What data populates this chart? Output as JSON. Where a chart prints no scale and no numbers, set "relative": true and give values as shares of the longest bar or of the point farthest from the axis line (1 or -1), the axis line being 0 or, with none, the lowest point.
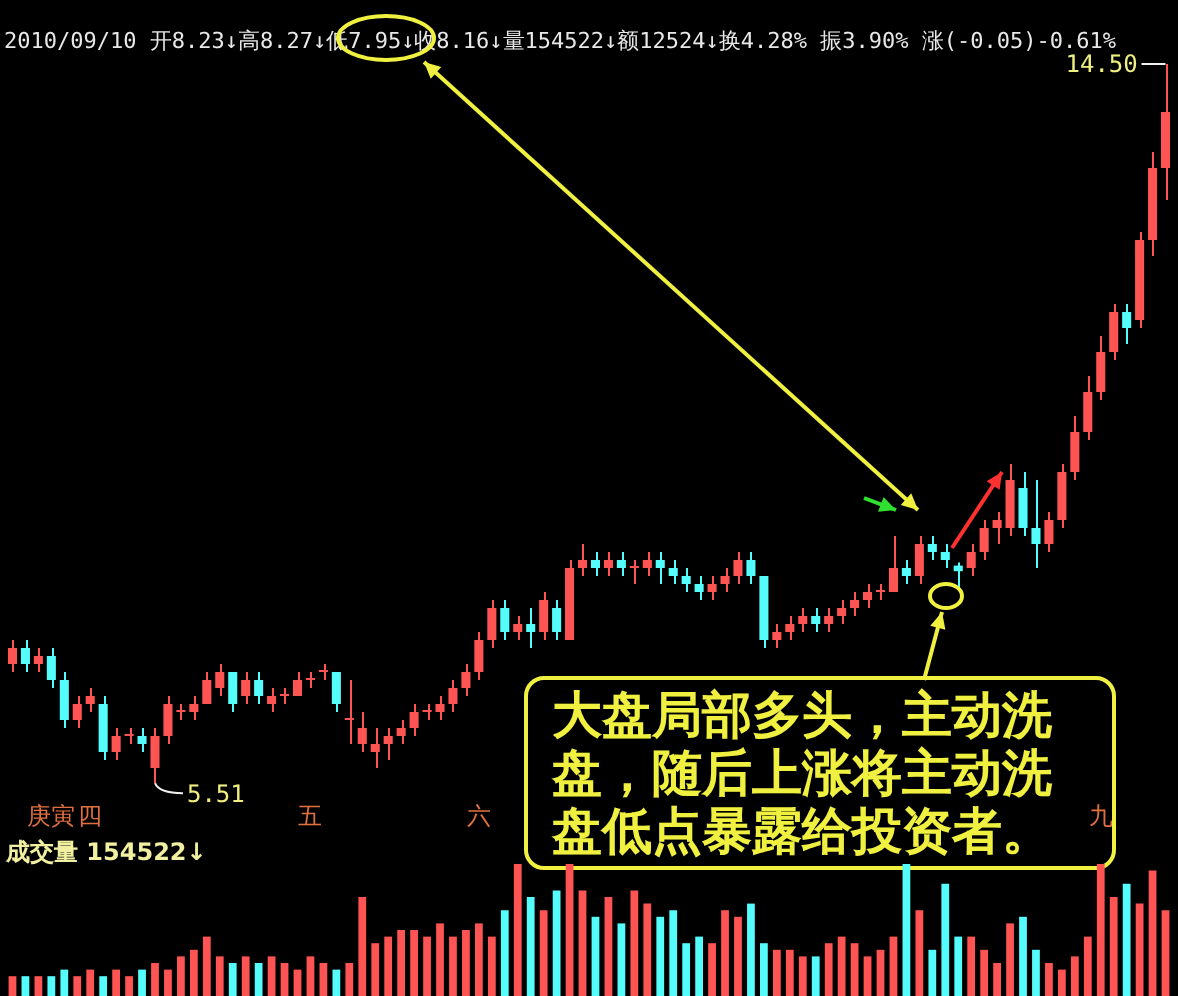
{
  "chart_data": [
    {
      "type": "candlestick",
      "title": "2010/09/10 开8.23↓高8.27↓低7.95↓收8.16↓量154522↓额12524↓换4.28% 振3.90% 涨(-0.05)-0.61%",
      "categories": [
        null,
        null,
        null,
        "庚寅",
        null,
        null,
        "四",
        null,
        null,
        null,
        null,
        null,
        null,
        null,
        null,
        null,
        null,
        null,
        null,
        null,
        null,
        null,
        null,
        "五",
        null,
        null,
        null,
        null,
        null,
        null,
        null,
        null,
        null,
        null,
        null,
        null,
        "六",
        null,
        null,
        null,
        null,
        null,
        null,
        null,
        null,
        null,
        null,
        null,
        null,
        null,
        null,
        null,
        null,
        null,
        null,
        null,
        null,
        null,
        null,
        null,
        null,
        null,
        null,
        null,
        null,
        null,
        null,
        null,
        null,
        null,
        null,
        null,
        null,
        null,
        null,
        null,
        null,
        null,
        null,
        null,
        null,
        null,
        null,
        null,
        "九",
        null,
        null,
        null,
        null,
        null
      ],
      "ohlc": [
        [
          7.0,
          7.3,
          6.9,
          7.2
        ],
        [
          7.2,
          7.3,
          6.9,
          7.0
        ],
        [
          7.0,
          7.2,
          6.9,
          7.1
        ],
        [
          7.1,
          7.2,
          6.7,
          6.8
        ],
        [
          6.8,
          6.9,
          6.2,
          6.3
        ],
        [
          6.3,
          6.6,
          6.2,
          6.5
        ],
        [
          6.5,
          6.7,
          6.4,
          6.6
        ],
        [
          6.5,
          6.6,
          5.8,
          5.9
        ],
        [
          5.9,
          6.2,
          5.8,
          6.1
        ],
        [
          6.1,
          6.2,
          6.0,
          6.1
        ],
        [
          6.1,
          6.2,
          5.9,
          6.0
        ],
        [
          5.7,
          6.2,
          5.51,
          6.1
        ],
        [
          6.1,
          6.6,
          6.0,
          6.5
        ],
        [
          6.4,
          6.5,
          6.3,
          6.4
        ],
        [
          6.4,
          6.6,
          6.3,
          6.5
        ],
        [
          6.5,
          6.9,
          6.5,
          6.8
        ],
        [
          6.7,
          7.0,
          6.6,
          6.9
        ],
        [
          6.9,
          6.9,
          6.4,
          6.5
        ],
        [
          6.6,
          6.9,
          6.5,
          6.8
        ],
        [
          6.8,
          6.9,
          6.5,
          6.6
        ],
        [
          6.5,
          6.7,
          6.4,
          6.6
        ],
        [
          6.6,
          6.7,
          6.5,
          6.6
        ],
        [
          6.6,
          6.9,
          6.6,
          6.8
        ],
        [
          6.8,
          6.9,
          6.7,
          6.8
        ],
        [
          6.9,
          7.0,
          6.8,
          6.9
        ],
        [
          6.9,
          6.9,
          6.4,
          6.5
        ],
        [
          6.3,
          6.8,
          6.0,
          6.3
        ],
        [
          6.0,
          6.4,
          5.9,
          6.2
        ],
        [
          5.9,
          6.2,
          5.7,
          6.0
        ],
        [
          6.0,
          6.2,
          5.8,
          6.1
        ],
        [
          6.1,
          6.3,
          6.0,
          6.2
        ],
        [
          6.2,
          6.5,
          6.1,
          6.4
        ],
        [
          6.4,
          6.5,
          6.3,
          6.4
        ],
        [
          6.4,
          6.6,
          6.3,
          6.5
        ],
        [
          6.5,
          6.8,
          6.4,
          6.7
        ],
        [
          6.7,
          7.0,
          6.6,
          6.9
        ],
        [
          6.9,
          7.4,
          6.8,
          7.3
        ],
        [
          7.3,
          7.8,
          7.2,
          7.7
        ],
        [
          7.7,
          7.8,
          7.3,
          7.4
        ],
        [
          7.4,
          7.6,
          7.3,
          7.5
        ],
        [
          7.5,
          7.7,
          7.2,
          7.4
        ],
        [
          7.4,
          7.9,
          7.3,
          7.8
        ],
        [
          7.7,
          7.8,
          7.3,
          7.4
        ],
        [
          7.3,
          8.3,
          7.3,
          8.2
        ],
        [
          8.2,
          8.5,
          8.1,
          8.3
        ],
        [
          8.3,
          8.4,
          8.1,
          8.2
        ],
        [
          8.2,
          8.4,
          8.1,
          8.3
        ],
        [
          8.3,
          8.4,
          8.1,
          8.2
        ],
        [
          8.2,
          8.3,
          8.0,
          8.2
        ],
        [
          8.2,
          8.4,
          8.1,
          8.3
        ],
        [
          8.3,
          8.4,
          8.0,
          8.2
        ],
        [
          8.2,
          8.3,
          8.0,
          8.1
        ],
        [
          8.1,
          8.2,
          7.9,
          8.0
        ],
        [
          8.0,
          8.1,
          7.8,
          7.9
        ],
        [
          7.9,
          8.1,
          7.8,
          8.0
        ],
        [
          8.0,
          8.2,
          7.9,
          8.1
        ],
        [
          8.1,
          8.4,
          8.0,
          8.3
        ],
        [
          8.3,
          8.4,
          8.0,
          8.1
        ],
        [
          8.1,
          8.1,
          7.2,
          7.3
        ],
        [
          7.3,
          7.5,
          7.2,
          7.4
        ],
        [
          7.4,
          7.6,
          7.3,
          7.5
        ],
        [
          7.5,
          7.7,
          7.4,
          7.6
        ],
        [
          7.6,
          7.7,
          7.4,
          7.5
        ],
        [
          7.5,
          7.7,
          7.4,
          7.6
        ],
        [
          7.6,
          7.8,
          7.5,
          7.7
        ],
        [
          7.7,
          7.9,
          7.6,
          7.8
        ],
        [
          7.8,
          8.0,
          7.7,
          7.9
        ],
        [
          7.9,
          8.0,
          7.8,
          7.9
        ],
        [
          7.9,
          8.6,
          7.9,
          8.2
        ],
        [
          8.2,
          8.3,
          8.0,
          8.1
        ],
        [
          8.1,
          8.6,
          8.0,
          8.5
        ],
        [
          8.5,
          8.6,
          8.3,
          8.4
        ],
        [
          8.4,
          8.5,
          8.2,
          8.3
        ],
        [
          8.23,
          8.27,
          7.95,
          8.16
        ],
        [
          8.2,
          8.5,
          8.1,
          8.4
        ],
        [
          8.4,
          8.8,
          8.3,
          8.7
        ],
        [
          8.7,
          8.9,
          8.5,
          8.8
        ],
        [
          8.7,
          9.5,
          8.6,
          9.3
        ],
        [
          9.2,
          9.4,
          8.6,
          8.7
        ],
        [
          8.7,
          9.3,
          8.2,
          8.5
        ],
        [
          8.5,
          8.9,
          8.4,
          8.8
        ],
        [
          8.8,
          9.5,
          8.7,
          9.4
        ],
        [
          9.4,
          10.1,
          9.3,
          9.9
        ],
        [
          9.9,
          10.6,
          9.8,
          10.4
        ],
        [
          10.4,
          11.1,
          10.3,
          10.9
        ],
        [
          10.9,
          11.5,
          10.8,
          11.4
        ],
        [
          11.4,
          11.5,
          11.0,
          11.2
        ],
        [
          11.3,
          12.4,
          11.2,
          12.3
        ],
        [
          12.3,
          13.4,
          12.1,
          13.2
        ],
        [
          13.2,
          14.5,
          12.8,
          13.9
        ]
      ],
      "colors": [
        "#ff5454",
        "#54fcfc",
        "#ff5454",
        "#54fcfc",
        "#54fcfc",
        "#ff5454",
        "#ff5454",
        "#54fcfc",
        "#ff5454",
        "#ff5454",
        "#54fcfc",
        "#ff5454",
        "#ff5454",
        "#ff5454",
        "#ff5454",
        "#ff5454",
        "#ff5454",
        "#54fcfc",
        "#ff5454",
        "#54fcfc",
        "#ff5454",
        "#ff5454",
        "#ff5454",
        "#ff5454",
        "#ff5454",
        "#54fcfc",
        "#ff5454",
        "#ff5454",
        "#ff5454",
        "#ff5454",
        "#ff5454",
        "#ff5454",
        "#ff5454",
        "#ff5454",
        "#ff5454",
        "#ff5454",
        "#ff5454",
        "#ff5454",
        "#54fcfc",
        "#ff5454",
        "#54fcfc",
        "#ff5454",
        "#54fcfc",
        "#ff5454",
        "#ff5454",
        "#54fcfc",
        "#ff5454",
        "#54fcfc",
        "#ff5454",
        "#ff5454",
        "#54fcfc",
        "#54fcfc",
        "#54fcfc",
        "#54fcfc",
        "#ff5454",
        "#ff5454",
        "#ff5454",
        "#54fcfc",
        "#54fcfc",
        "#ff5454",
        "#ff5454",
        "#ff5454",
        "#54fcfc",
        "#ff5454",
        "#ff5454",
        "#ff5454",
        "#ff5454",
        "#ff5454",
        "#ff5454",
        "#54fcfc",
        "#ff5454",
        "#54fcfc",
        "#54fcfc",
        "#54fcfc",
        "#ff5454",
        "#ff5454",
        "#ff5454",
        "#ff5454",
        "#54fcfc",
        "#54fcfc",
        "#ff5454",
        "#ff5454",
        "#ff5454",
        "#ff5454",
        "#ff5454",
        "#ff5454",
        "#54fcfc",
        "#ff5454",
        "#ff5454",
        "#ff5454"
      ],
      "annotations": [
        "大盘局部多头，主动洗盘，随后上涨将主动洗盘低点暴露给投资者。",
        "14.50",
        "5.51"
      ],
      "tick_labels": "x"
    },
    {
      "type": "bar",
      "relative": true,
      "categories": [
        null,
        null,
        null,
        null,
        null,
        null,
        null,
        null,
        null,
        null,
        null,
        null,
        null,
        null,
        null,
        null,
        null,
        null,
        null,
        null,
        null,
        null,
        null,
        null,
        null,
        null,
        null,
        null,
        null,
        null,
        null,
        null,
        null,
        null,
        null,
        null,
        null,
        null,
        null,
        null,
        null,
        null,
        null,
        null,
        null,
        null,
        null,
        null,
        null,
        null,
        null,
        null,
        null,
        null,
        null,
        null,
        null,
        null,
        null,
        null,
        null,
        null,
        null,
        null,
        null,
        null,
        null,
        null,
        null,
        null,
        null,
        null,
        null,
        null,
        null,
        null,
        null,
        null,
        null,
        null,
        null,
        null,
        null,
        null,
        null,
        null,
        null,
        null,
        null,
        null
      ],
      "values": [
        0.15,
        0.15,
        0.15,
        0.15,
        0.2,
        0.15,
        0.2,
        0.15,
        0.2,
        0.15,
        0.2,
        0.25,
        0.2,
        0.3,
        0.35,
        0.45,
        0.3,
        0.25,
        0.3,
        0.25,
        0.3,
        0.25,
        0.2,
        0.3,
        0.25,
        0.2,
        0.25,
        0.75,
        0.4,
        0.45,
        0.5,
        0.5,
        0.45,
        0.55,
        0.45,
        0.5,
        0.55,
        0.45,
        0.65,
        1,
        0.75,
        0.65,
        0.8,
        1,
        0.8,
        0.6,
        0.75,
        0.55,
        0.8,
        0.7,
        0.6,
        0.65,
        0.4,
        0.45,
        0.4,
        0.65,
        0.6,
        0.7,
        0.4,
        0.35,
        0.35,
        0.3,
        0.3,
        0.4,
        0.45,
        0.4,
        0.3,
        0.35,
        0.45,
        1,
        0.65,
        0.35,
        0.85,
        0.45,
        0.45,
        0.35,
        0.25,
        0.55,
        0.6,
        0.35,
        0.25,
        0.2,
        0.3,
        0.45,
        1,
        0.75,
        0.85,
        0.7,
        0.95,
        0.65
      ],
      "colors": [
        "#ff5454",
        "#54fcfc",
        "#ff5454",
        "#54fcfc",
        "#54fcfc",
        "#ff5454",
        "#ff5454",
        "#54fcfc",
        "#ff5454",
        "#ff5454",
        "#54fcfc",
        "#ff5454",
        "#ff5454",
        "#ff5454",
        "#ff5454",
        "#ff5454",
        "#ff5454",
        "#54fcfc",
        "#ff5454",
        "#54fcfc",
        "#ff5454",
        "#ff5454",
        "#ff5454",
        "#ff5454",
        "#ff5454",
        "#54fcfc",
        "#ff5454",
        "#ff5454",
        "#ff5454",
        "#ff5454",
        "#ff5454",
        "#ff5454",
        "#ff5454",
        "#ff5454",
        "#ff5454",
        "#ff5454",
        "#ff5454",
        "#ff5454",
        "#54fcfc",
        "#ff5454",
        "#54fcfc",
        "#ff5454",
        "#54fcfc",
        "#ff5454",
        "#ff5454",
        "#54fcfc",
        "#ff5454",
        "#54fcfc",
        "#ff5454",
        "#ff5454",
        "#54fcfc",
        "#54fcfc",
        "#54fcfc",
        "#54fcfc",
        "#ff5454",
        "#ff5454",
        "#ff5454",
        "#54fcfc",
        "#54fcfc",
        "#ff5454",
        "#ff5454",
        "#ff5454",
        "#54fcfc",
        "#ff5454",
        "#ff5454",
        "#ff5454",
        "#ff5454",
        "#ff5454",
        "#ff5454",
        "#54fcfc",
        "#ff5454",
        "#54fcfc",
        "#54fcfc",
        "#54fcfc",
        "#ff5454",
        "#ff5454",
        "#ff5454",
        "#ff5454",
        "#54fcfc",
        "#54fcfc",
        "#ff5454",
        "#ff5454",
        "#ff5454",
        "#ff5454",
        "#ff5454",
        "#ff5454",
        "#54fcfc",
        "#ff5454",
        "#ff5454",
        "#ff5454"
      ],
      "annotations": [
        "成交量 154522↓"
      ]
    }
  ]
}
